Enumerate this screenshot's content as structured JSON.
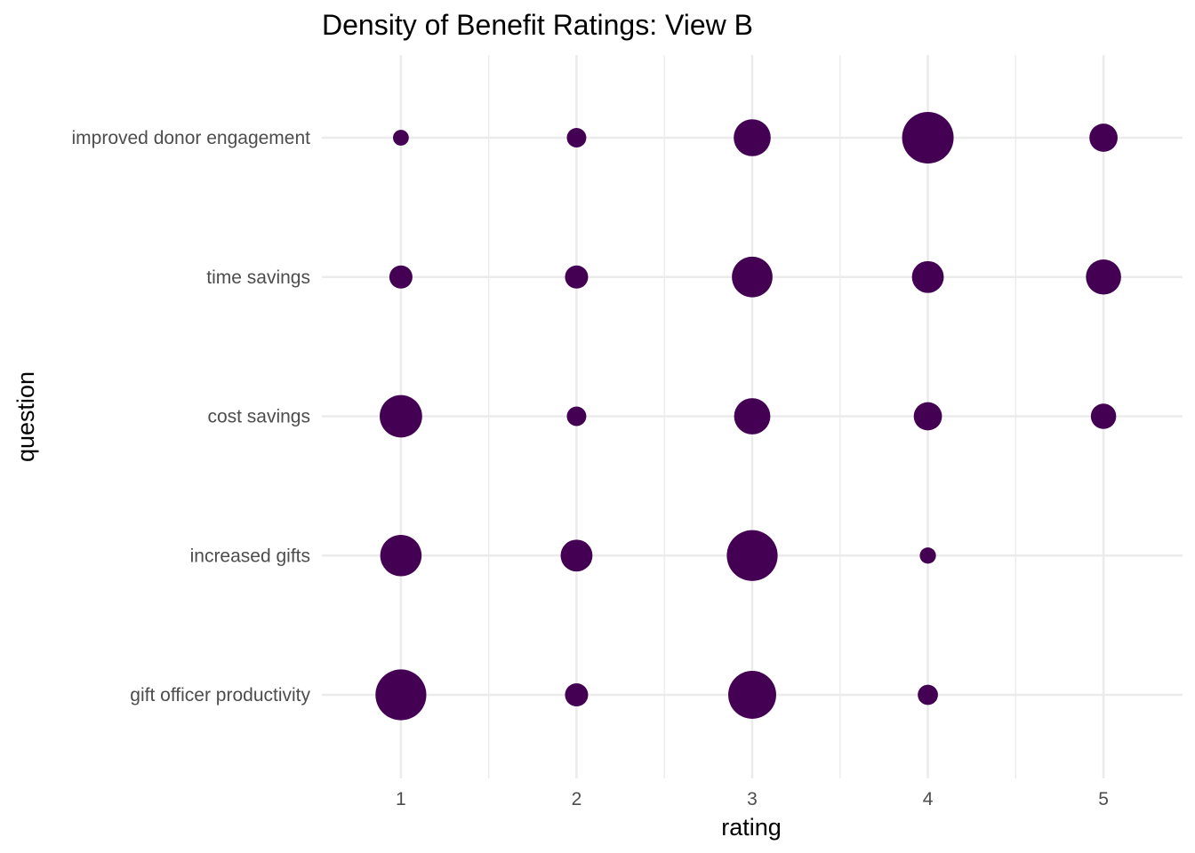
{
  "chart_data": {
    "type": "scatter",
    "title": "Density of Benefit Ratings: View B",
    "xlabel": "rating",
    "ylabel": "question",
    "x_ticks": [
      1,
      2,
      3,
      4,
      5
    ],
    "xlim": [
      0.55,
      5.45
    ],
    "categories": [
      "improved donor engagement",
      "time savings",
      "cost savings",
      "increased gifts",
      "gift officer productivity"
    ],
    "grid": true,
    "legend": "none",
    "point_color": "#440154",
    "size_unit": "relative density (0-1)",
    "points": [
      {
        "question": "improved donor engagement",
        "rating": 1,
        "size": 0.02
      },
      {
        "question": "improved donor engagement",
        "rating": 2,
        "size": 0.12
      },
      {
        "question": "improved donor engagement",
        "rating": 3,
        "size": 0.6
      },
      {
        "question": "improved donor engagement",
        "rating": 4,
        "size": 1.0
      },
      {
        "question": "improved donor engagement",
        "rating": 5,
        "size": 0.36
      },
      {
        "question": "time savings",
        "rating": 1,
        "size": 0.22
      },
      {
        "question": "time savings",
        "rating": 2,
        "size": 0.22
      },
      {
        "question": "time savings",
        "rating": 3,
        "size": 0.7
      },
      {
        "question": "time savings",
        "rating": 4,
        "size": 0.46
      },
      {
        "question": "time savings",
        "rating": 5,
        "size": 0.55
      },
      {
        "question": "cost savings",
        "rating": 1,
        "size": 0.75
      },
      {
        "question": "cost savings",
        "rating": 2,
        "size": 0.12
      },
      {
        "question": "cost savings",
        "rating": 3,
        "size": 0.58
      },
      {
        "question": "cost savings",
        "rating": 4,
        "size": 0.36
      },
      {
        "question": "cost savings",
        "rating": 5,
        "size": 0.28
      },
      {
        "question": "increased gifts",
        "rating": 1,
        "size": 0.72
      },
      {
        "question": "increased gifts",
        "rating": 2,
        "size": 0.46
      },
      {
        "question": "increased gifts",
        "rating": 3,
        "size": 0.98
      },
      {
        "question": "increased gifts",
        "rating": 4,
        "size": 0.03
      },
      {
        "question": "gift officer productivity",
        "rating": 1,
        "size": 0.98
      },
      {
        "question": "gift officer productivity",
        "rating": 2,
        "size": 0.22
      },
      {
        "question": "gift officer productivity",
        "rating": 3,
        "size": 0.9
      },
      {
        "question": "gift officer productivity",
        "rating": 4,
        "size": 0.14
      }
    ]
  }
}
